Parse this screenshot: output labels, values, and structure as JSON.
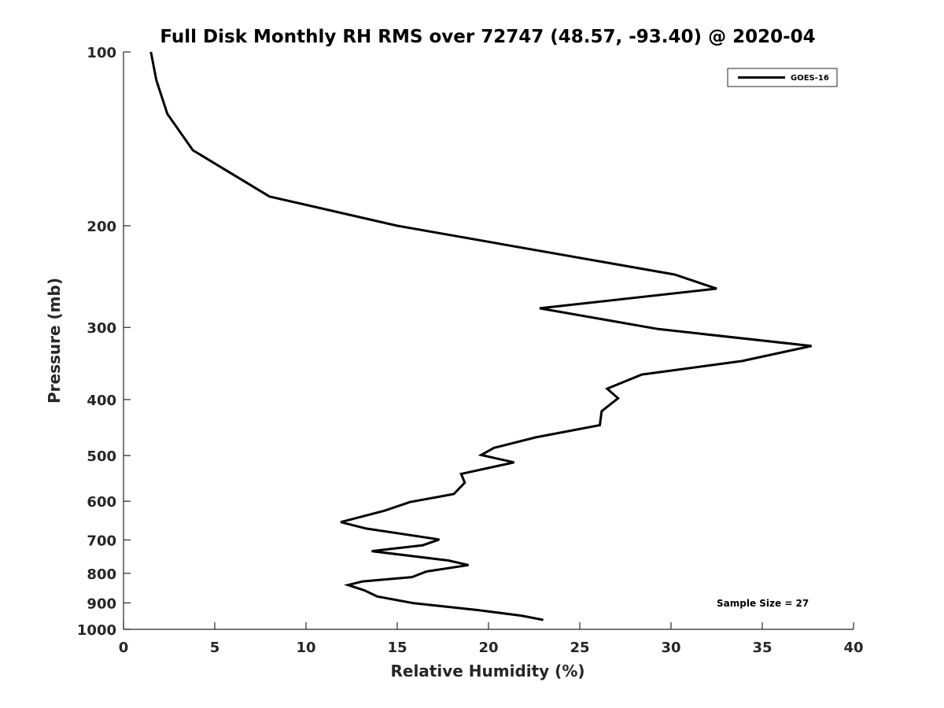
{
  "chart_data": {
    "type": "line",
    "title": "Full Disk Monthly RH RMS over 72747 (48.57, -93.40) @ 2020-04",
    "xlabel": "Relative Humidity (%)",
    "ylabel": "Pressure (mb)",
    "xlim": [
      0,
      40
    ],
    "ylim": [
      100,
      1000
    ],
    "y_scale": "log",
    "y_reversed": true,
    "grid": false,
    "x_ticks": [
      0,
      5,
      10,
      15,
      20,
      25,
      30,
      35,
      40
    ],
    "x_tick_labels": [
      "0",
      "5",
      "10",
      "15",
      "20",
      "25",
      "30",
      "35",
      "40"
    ],
    "y_ticks": [
      100,
      200,
      300,
      400,
      500,
      600,
      700,
      800,
      900,
      1000
    ],
    "y_tick_labels": [
      "100",
      "200",
      "300",
      "400",
      "500",
      "600",
      "700",
      "800",
      "900",
      "1000"
    ],
    "legend_position": "top-right",
    "line_color": "#000000",
    "series": [
      {
        "name": "GOES-16",
        "x": [
          1.5,
          1.8,
          2.4,
          3.8,
          8.0,
          15.0,
          30.2,
          32.5,
          22.8,
          29.3,
          37.7,
          33.9,
          28.4,
          27.3,
          26.5,
          27.1,
          26.2,
          26.1,
          22.6,
          20.3,
          19.6,
          21.4,
          18.5,
          18.7,
          18.1,
          15.7,
          14.3,
          11.9,
          13.3,
          17.3,
          16.4,
          13.6,
          17.8,
          18.9,
          16.6,
          15.8,
          13.1,
          12.3,
          13.2,
          13.9,
          15.9,
          19.4,
          21.8,
          23.0
        ],
        "y": [
          100,
          112,
          128,
          148,
          178,
          200,
          243,
          257,
          278,
          302,
          323,
          343,
          362,
          374,
          383,
          398,
          419,
          443,
          465,
          485,
          499,
          514,
          538,
          557,
          583,
          602,
          623,
          652,
          669,
          699,
          715,
          732,
          760,
          774,
          794,
          812,
          826,
          838,
          856,
          877,
          901,
          926,
          947,
          963
        ]
      }
    ],
    "annotation": "Sample Size = 27"
  }
}
